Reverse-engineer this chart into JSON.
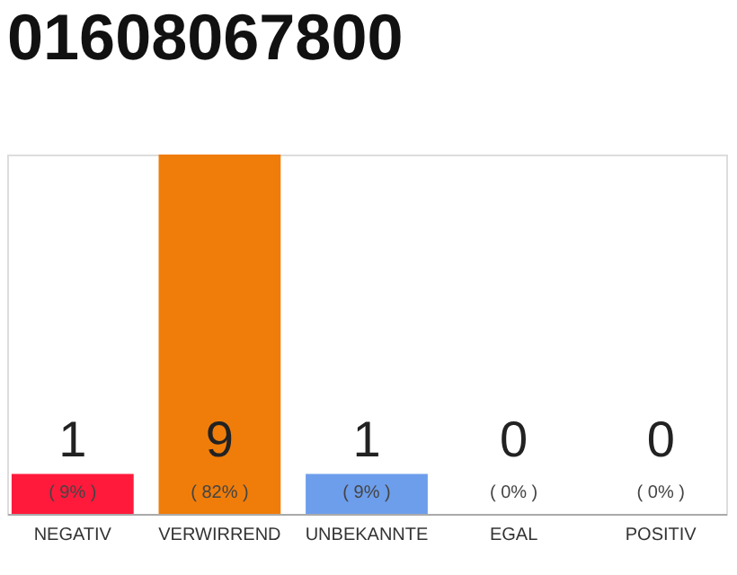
{
  "chart_data": {
    "type": "bar",
    "title": "01608067800",
    "categories": [
      "NEGATIV",
      "VERWIRREND",
      "UNBEKANNTE",
      "EGAL",
      "POSITIV"
    ],
    "values": [
      1,
      9,
      1,
      0,
      0
    ],
    "colors": [
      "#ff1a3c",
      "#f07d0a",
      "#6d9eeb",
      "#cccccc",
      "#cccccc"
    ],
    "tick_labels": "x",
    "data_labels": true,
    "annotations": [
      "( 9% )",
      "( 82% )",
      "( 9% )",
      "( 0% )",
      "( 0% )"
    ]
  }
}
